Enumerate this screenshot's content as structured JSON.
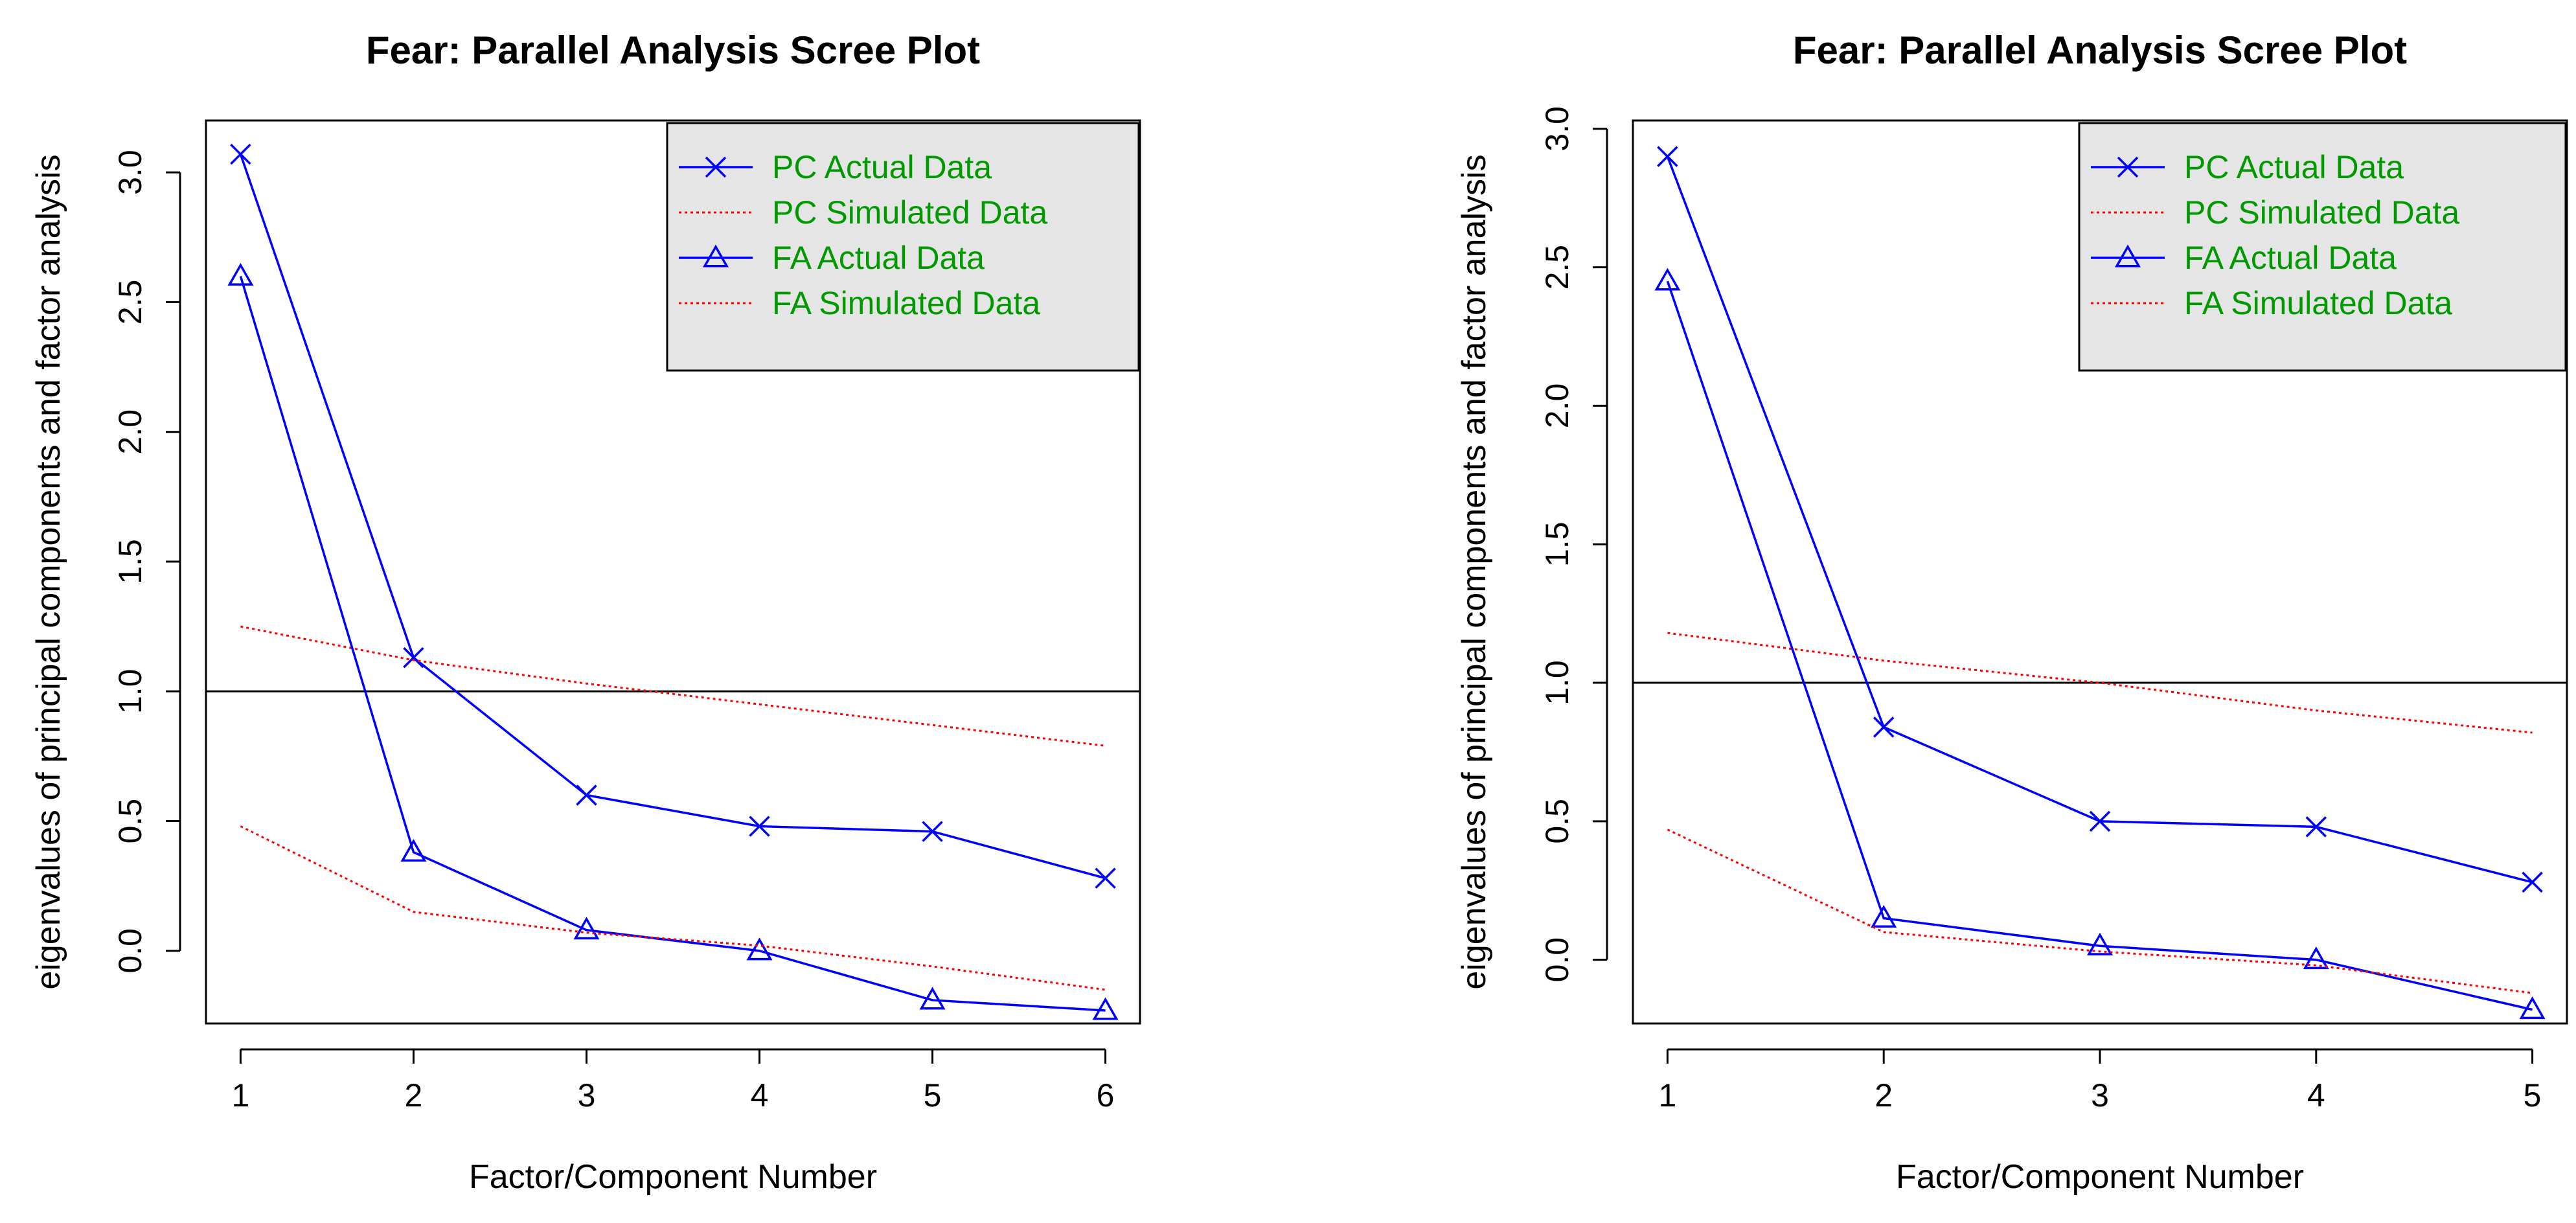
{
  "colors": {
    "actual": "#0000FF",
    "simulated": "#FF0000",
    "legend_text": "#009900",
    "legend_bg": "#E5E5E5",
    "axis": "#000000",
    "reference_line": "#000000"
  },
  "chart_data": [
    {
      "type": "line",
      "title": "Fear: Parallel Analysis Scree Plot",
      "xlabel": "Factor/Component Number",
      "ylabel": "eigenvalues of principal components and factor analysis",
      "x": [
        1,
        2,
        3,
        4,
        5,
        6
      ],
      "xticks": [
        "1",
        "2",
        "3",
        "4",
        "5",
        "6"
      ],
      "yticks": [
        "0.0",
        "0.5",
        "1.0",
        "1.5",
        "2.0",
        "2.5",
        "3.0"
      ],
      "xlim": [
        0.8,
        6.2
      ],
      "ylim": [
        -0.28,
        3.2
      ],
      "legend_position": "top-right",
      "reference_line_y": 1.0,
      "series": [
        {
          "name": "PC  Actual Data",
          "marker": "x",
          "values": [
            3.07,
            1.13,
            0.6,
            0.48,
            0.46,
            0.28
          ]
        },
        {
          "name": "PC  Simulated Data",
          "marker": "none",
          "values": [
            1.25,
            1.12,
            1.03,
            0.95,
            0.87,
            0.79
          ]
        },
        {
          "name": "FA  Actual Data",
          "marker": "triangle",
          "values": [
            2.6,
            0.38,
            0.08,
            0.0,
            -0.19,
            -0.23
          ]
        },
        {
          "name": "FA  Simulated Data",
          "marker": "none",
          "values": [
            0.48,
            0.15,
            0.07,
            0.02,
            -0.06,
            -0.15
          ]
        }
      ]
    },
    {
      "type": "line",
      "title": "Fear: Parallel Analysis Scree Plot",
      "xlabel": "Factor/Component Number",
      "ylabel": "eigenvalues of principal components and factor analysis",
      "x": [
        1,
        2,
        3,
        4,
        5
      ],
      "xticks": [
        "1",
        "2",
        "3",
        "4",
        "5"
      ],
      "yticks": [
        "0.0",
        "0.5",
        "1.0",
        "1.5",
        "2.0",
        "2.5",
        "3.0"
      ],
      "xlim": [
        0.84,
        5.16
      ],
      "ylim": [
        -0.23,
        3.03
      ],
      "legend_position": "top-right",
      "reference_line_y": 1.0,
      "series": [
        {
          "name": "PC  Actual Data",
          "marker": "x",
          "values": [
            2.9,
            0.84,
            0.5,
            0.48,
            0.28
          ]
        },
        {
          "name": "PC  Simulated Data",
          "marker": "none",
          "values": [
            1.18,
            1.08,
            1.0,
            0.9,
            0.82
          ]
        },
        {
          "name": "FA  Actual Data",
          "marker": "triangle",
          "values": [
            2.45,
            0.15,
            0.05,
            0.0,
            -0.18
          ]
        },
        {
          "name": "FA  Simulated Data",
          "marker": "none",
          "values": [
            0.47,
            0.1,
            0.03,
            -0.02,
            -0.12
          ]
        }
      ]
    }
  ]
}
